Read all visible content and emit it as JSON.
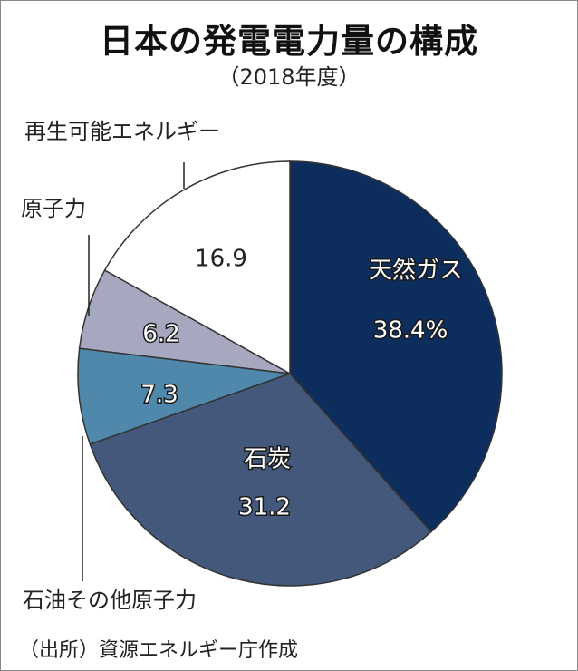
{
  "title": "日本の発電電力量の構成",
  "subtitle": "（2018年度）",
  "source": "（出所）資源エネルギー庁作成",
  "chart_data": {
    "type": "pie",
    "title": "日本の発電電力量の構成",
    "subtitle": "（2018年度）",
    "unit": "%",
    "slices": [
      {
        "label": "天然ガス",
        "value": 38.4,
        "value_text": "38.4%",
        "color": "#0d2e5c"
      },
      {
        "label": "石炭",
        "value": 31.2,
        "value_text": "31.2",
        "color": "#43587a"
      },
      {
        "label": "石油その他原子力",
        "value": 0,
        "value_text": "",
        "color": "#ffffff"
      },
      {
        "label": "",
        "value": 7.3,
        "value_text": "7.3",
        "color": "#4f88aa"
      },
      {
        "label": "原子力",
        "value": 6.2,
        "value_text": "6.2",
        "color": "#a6a8bf"
      },
      {
        "label": "再生可能エネルギー",
        "value": 16.9,
        "value_text": "16.9",
        "color": "#ffffff"
      }
    ]
  }
}
